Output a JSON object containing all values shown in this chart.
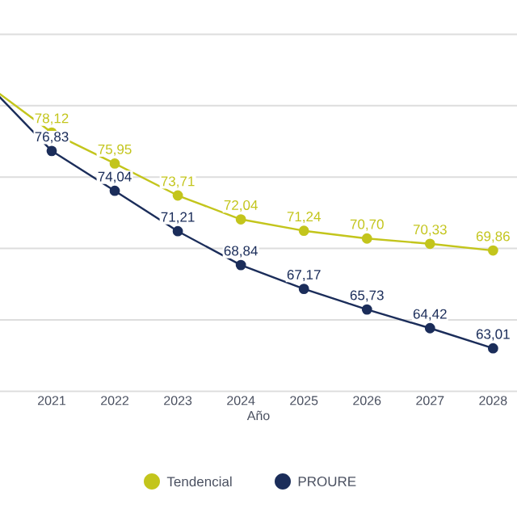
{
  "chart_data": {
    "type": "line",
    "xlabel": "Año",
    "categories": [
      null,
      "2021",
      "2022",
      "2023",
      "2024",
      "2025",
      "2026",
      "2027",
      "2028"
    ],
    "series": [
      {
        "name": "Tendencial",
        "color": "#c3c51c",
        "values": [
          81.4,
          78.12,
          75.95,
          73.71,
          72.04,
          71.24,
          70.7,
          70.33,
          69.86
        ],
        "value_labels": [
          null,
          "78,12",
          "75,95",
          "73,71",
          "72,04",
          "71,24",
          "70,70",
          "70,33",
          "69,86"
        ]
      },
      {
        "name": "PROURE",
        "color": "#1b2d5a",
        "values": [
          81.4,
          76.83,
          74.04,
          71.21,
          68.84,
          67.17,
          65.73,
          64.42,
          63.01
        ],
        "value_labels": [
          null,
          "76,83",
          "74,04",
          "71,21",
          "68,84",
          "67,17",
          "65,73",
          "64,42",
          "63,01"
        ]
      }
    ],
    "ylim": [
      60,
      85
    ],
    "yticks": [
      {
        "value": 60,
        "label": null
      },
      {
        "value": 65,
        "label": null
      },
      {
        "value": 70,
        "label": null
      },
      {
        "value": 75,
        "label": null
      },
      {
        "value": 80,
        "label": null
      },
      {
        "value": 85,
        "label": null
      }
    ],
    "tick_labels": "x",
    "grid": "y",
    "legend": "bottom",
    "marker": "circle",
    "line_style": "solid"
  }
}
